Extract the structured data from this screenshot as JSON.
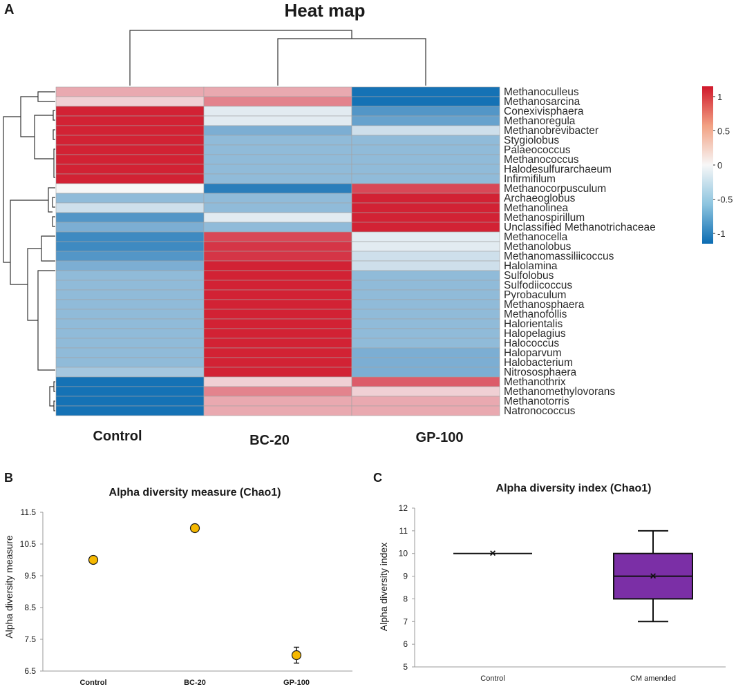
{
  "chart_data": [
    {
      "type": "heatmap",
      "panel_label": "A",
      "title": "Heat map",
      "columns": [
        "Control",
        "BC-20",
        "GP-100"
      ],
      "rows": [
        "Methanoculleus",
        "Methanosarcina",
        "Conexivisphaera",
        "Methanoregula",
        "Methanobrevibacter",
        "Stygiolobus",
        "Palaeococcus",
        "Methanococcus",
        "Halodesulfurarchaeum",
        "Infirmifilum",
        "Methanocorpusculum",
        "Archaeoglobus",
        "Methanolinea",
        "Methanospirillum",
        "Unclassified Methanotrichaceae",
        "Methanocella",
        "Methanolobus",
        "Methanomassiliicoccus",
        "Halolamina",
        "Sulfolobus",
        "Sulfodiicoccus",
        "Pyrobaculum",
        "Methanosphaera",
        "Methanofollis",
        "Halorientalis",
        "Halopelagius",
        "Halococcus",
        "Haloparvum",
        "Halobacterium",
        "Nitrososphaera",
        "Methanothrix",
        "Methanomethylovorans",
        "Methanotorris",
        "Natronococcus"
      ],
      "values": [
        [
          0.4,
          0.4,
          -1.1
        ],
        [
          0.2,
          0.6,
          -1.1
        ],
        [
          1.1,
          -0.1,
          -0.8
        ],
        [
          1.1,
          -0.1,
          -0.7
        ],
        [
          1.1,
          -0.6,
          -0.2
        ],
        [
          1.1,
          -0.5,
          -0.5
        ],
        [
          1.1,
          -0.5,
          -0.5
        ],
        [
          1.1,
          -0.5,
          -0.5
        ],
        [
          1.1,
          -0.5,
          -0.5
        ],
        [
          1.1,
          -0.5,
          -0.5
        ],
        [
          0.0,
          -1.0,
          0.9
        ],
        [
          -0.5,
          -0.5,
          1.1
        ],
        [
          -0.2,
          -0.5,
          1.1
        ],
        [
          -0.8,
          -0.1,
          1.1
        ],
        [
          -0.6,
          -0.5,
          1.1
        ],
        [
          -0.9,
          0.9,
          -0.1
        ],
        [
          -0.9,
          1.0,
          -0.1
        ],
        [
          -0.8,
          1.0,
          -0.2
        ],
        [
          -0.6,
          1.1,
          -0.2
        ],
        [
          -0.5,
          1.1,
          -0.5
        ],
        [
          -0.5,
          1.1,
          -0.5
        ],
        [
          -0.5,
          1.1,
          -0.5
        ],
        [
          -0.5,
          1.1,
          -0.5
        ],
        [
          -0.5,
          1.1,
          -0.5
        ],
        [
          -0.5,
          1.1,
          -0.5
        ],
        [
          -0.5,
          1.1,
          -0.5
        ],
        [
          -0.5,
          1.1,
          -0.5
        ],
        [
          -0.5,
          1.1,
          -0.6
        ],
        [
          -0.5,
          1.1,
          -0.6
        ],
        [
          -0.4,
          1.1,
          -0.6
        ],
        [
          -1.1,
          0.2,
          0.8
        ],
        [
          -1.1,
          0.6,
          0.2
        ],
        [
          -1.1,
          0.4,
          0.4
        ],
        [
          -1.1,
          0.4,
          0.4
        ]
      ],
      "color_scale": {
        "min": -1.15,
        "max": 1.15,
        "low_color": "#0b6cb2",
        "mid_color": "#f7f7f7",
        "high_color": "#d0182b",
        "ticks": [
          1,
          0.5,
          0,
          -0.5,
          -1
        ],
        "tick_labels": [
          "1",
          "0.5",
          "0",
          "-0.5",
          "-1"
        ]
      },
      "cell_border_color": "#a3a3a3",
      "dendrogram_color": "#333333"
    },
    {
      "type": "scatter",
      "panel_label": "B",
      "title": "Alpha diversity measure (Chao1)",
      "xlabel": "",
      "ylabel": "Alpha diversity measure",
      "categories": [
        "Control",
        "BC-20",
        "GP-100"
      ],
      "values": [
        10,
        11,
        7
      ],
      "error": [
        0,
        0,
        0.25
      ],
      "ylim": [
        6.5,
        11.5
      ],
      "yticks": [
        "11.5",
        "10.5",
        "9.5",
        "8.5",
        "7.5",
        "6.5"
      ],
      "marker_color": "#f5b800"
    },
    {
      "type": "box",
      "panel_label": "C",
      "title": "Alpha diversity index (Chao1)",
      "xlabel": "",
      "ylabel": "Alpha diversity index",
      "categories": [
        "Control",
        "CM amended"
      ],
      "boxes": [
        {
          "min": 10,
          "q1": 10,
          "median": 10,
          "q3": 10,
          "max": 10,
          "mean": 10
        },
        {
          "min": 7,
          "q1": 8,
          "median": 9,
          "q3": 10,
          "max": 11,
          "mean": 9
        }
      ],
      "ylim": [
        5,
        12
      ],
      "yticks": [
        "12",
        "11",
        "10",
        "9",
        "8",
        "7",
        "6",
        "5"
      ],
      "box_color": "#7b2fa6",
      "mean_marker": "×"
    }
  ]
}
